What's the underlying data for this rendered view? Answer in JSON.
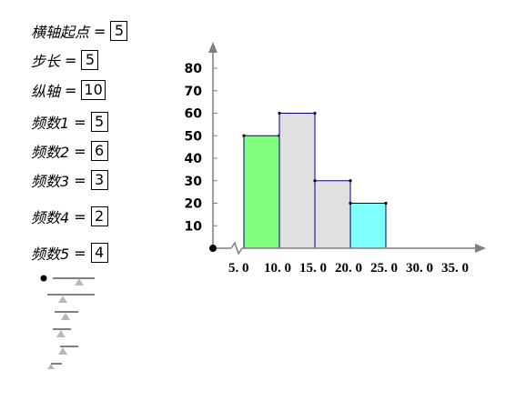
{
  "params": [
    {
      "label": "横轴起点",
      "value": "5"
    },
    {
      "label": "步长",
      "value": "5"
    },
    {
      "label": "纵轴",
      "value": "10"
    },
    {
      "label": "频数1",
      "value": "5"
    },
    {
      "label": "频数2",
      "value": "6"
    },
    {
      "label": "频数3",
      "value": "3"
    },
    {
      "label": "频数4",
      "value": "2"
    },
    {
      "label": "频数5",
      "value": "4"
    }
  ],
  "equals_sign": "=",
  "chart_data": {
    "type": "bar",
    "x_ticks": [
      "5. 0",
      "10. 0",
      "15. 0",
      "20. 0",
      "25. 0",
      "30. 0",
      "35. 0"
    ],
    "y_ticks": [
      "10",
      "20",
      "30",
      "40",
      "50",
      "60",
      "70",
      "80"
    ],
    "ylim": [
      0,
      80
    ],
    "bins": [
      {
        "from": 5,
        "to": 10,
        "value": 50,
        "color": "#80ff80"
      },
      {
        "from": 10,
        "to": 15,
        "value": 60,
        "color": "#e0e0e0"
      },
      {
        "from": 15,
        "to": 20,
        "value": 30,
        "color": "#e0e0e0"
      },
      {
        "from": 20,
        "to": 25,
        "value": 20,
        "color": "#80ffff"
      }
    ],
    "xlim": [
      5,
      35
    ],
    "axis_break": true,
    "grid": false
  },
  "colors": {
    "axis": "#7f7f7f",
    "bar_border": "#000080",
    "handle": "#b0b0b0"
  }
}
